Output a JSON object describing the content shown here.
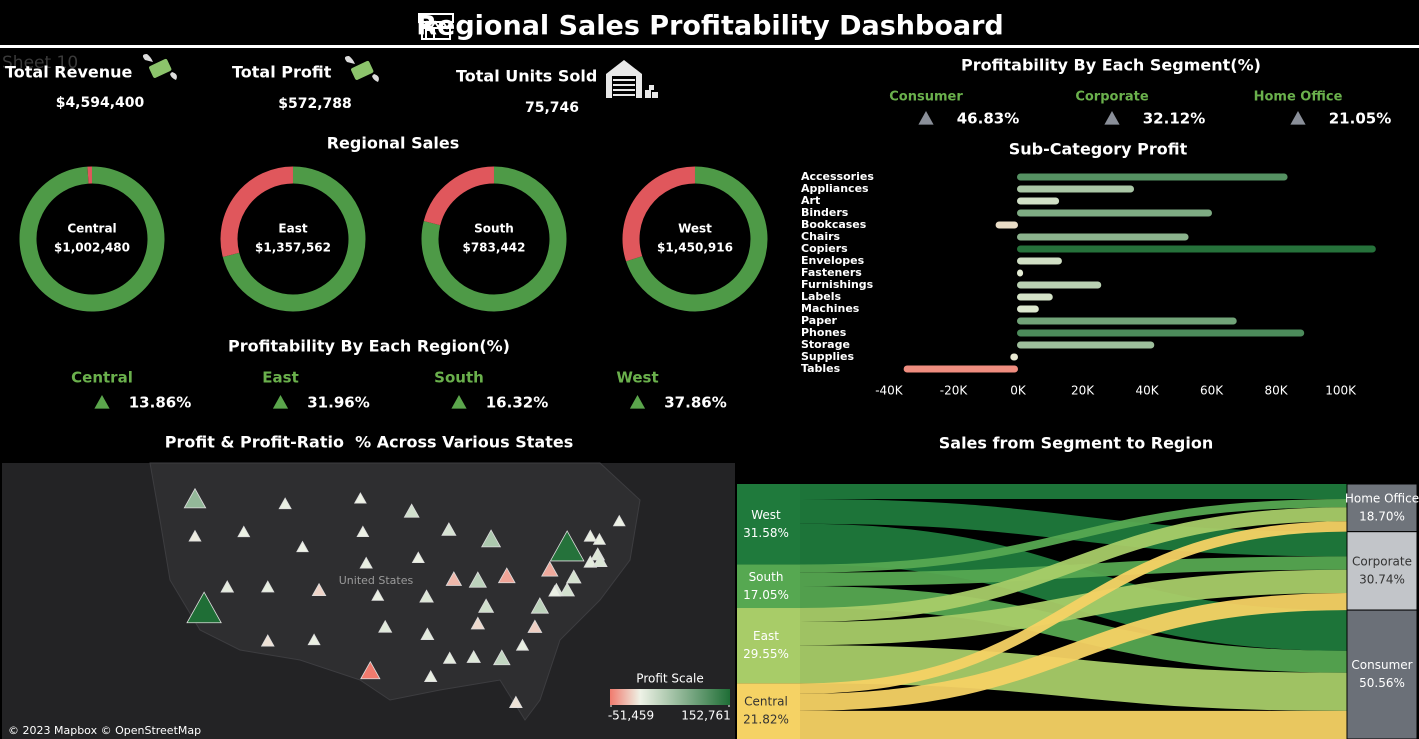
{
  "title": "Regional Sales Profitability Dashboard",
  "sheet_label": "Sheet 10",
  "kpis": [
    {
      "label": "Total Revenue",
      "value": "$4,594,400"
    },
    {
      "label": "Total Profit",
      "value": "$572,788"
    },
    {
      "label": "Total Units Sold",
      "value": "75,746"
    }
  ],
  "chart_data": [
    {
      "type": "donut",
      "title": "Regional Sales",
      "categories": [
        "Central",
        "East",
        "South",
        "West"
      ],
      "values": [
        1002480,
        1357562,
        783442,
        1450916
      ],
      "value_labels": [
        "$1,002,480",
        "$1,357,562",
        "$783,442",
        "$1,450,916"
      ],
      "shares": [
        [
          99,
          1
        ],
        [
          71,
          29
        ],
        [
          79,
          21
        ],
        [
          70,
          30
        ]
      ],
      "colors": [
        "#4e9a47",
        "#e0575c"
      ]
    },
    {
      "type": "indicator",
      "title": "Profitability By Each Region(%)",
      "categories": [
        "Central",
        "East",
        "South",
        "West"
      ],
      "values": [
        13.86,
        31.96,
        16.32,
        37.86
      ],
      "value_labels": [
        "13.86%",
        "31.96%",
        "16.32%",
        "37.86%"
      ],
      "color": "#5ba64c"
    },
    {
      "type": "indicator",
      "title": "Profitability By Each Segment(%)",
      "categories": [
        "Consumer",
        "Corporate",
        "Home Office"
      ],
      "values": [
        46.83,
        32.12,
        21.05
      ],
      "value_labels": [
        "46.83%",
        "32.12%",
        "21.05%"
      ],
      "color": "#8a8f99"
    },
    {
      "type": "hbar",
      "title": "Sub-Category Profit",
      "categories": [
        "Accessories",
        "Appliances",
        "Art",
        "Binders",
        "Bookcases",
        "Chairs",
        "Copiers",
        "Envelopes",
        "Fasteners",
        "Furnishings",
        "Labels",
        "Machines",
        "Paper",
        "Phones",
        "Storage",
        "Supplies",
        "Tables"
      ],
      "values": [
        83874,
        36276,
        13055,
        60443,
        -6945,
        53180,
        111236,
        13928,
        1899,
        26118,
        11093,
        6771,
        68107,
        89031,
        42558,
        -2378,
        -35450
      ],
      "xlim": [
        -42000,
        115000
      ],
      "xticks": [
        {
          "value": -40000,
          "label": "-40K"
        },
        {
          "value": -20000,
          "label": "-20K"
        },
        {
          "value": 0,
          "label": "0K"
        },
        {
          "value": 20000,
          "label": "20K"
        },
        {
          "value": 40000,
          "label": "40K"
        },
        {
          "value": 60000,
          "label": "60K"
        },
        {
          "value": 80000,
          "label": "80K"
        },
        {
          "value": 100000,
          "label": "100K"
        }
      ],
      "colors": [
        "#f07b6e",
        "#e8efd8",
        "#1f6e36"
      ]
    },
    {
      "type": "map",
      "title": "Profit & Profit-Ratio  % Across Various States",
      "annotation": "United States",
      "attribution": "© 2023 Mapbox © OpenStreetMap",
      "legend_title": "Profit Scale",
      "colorlim": [
        {
          "value": -51459,
          "label": "-51,459"
        },
        {
          "value": 152761,
          "label": "152,761"
        }
      ],
      "colors": [
        "#f07b6e",
        "#eef2e6",
        "#1f6e36"
      ],
      "lon": [
        -120.5,
        -120.5,
        -114.6,
        -109.6,
        -107.5,
        -100.5,
        -100.2,
        -94.3,
        -89.8,
        -84.7,
        -75.5,
        -69.2,
        -71.6,
        -72.7,
        -71.8,
        -72.7,
        -71.5,
        -74.7,
        -77.6,
        -75.5,
        -76.8,
        -78.8,
        -82.8,
        -86.3,
        -89.2,
        -93.5,
        -99.8,
        -98.4,
        -116.6,
        -111.7,
        -105.5,
        -119.4,
        -111.7,
        -106.1,
        -97.5,
        -92.5,
        -85.3,
        -92.4,
        -86.3,
        -79.4,
        -80.9,
        -83.4,
        -86.8,
        -89.7,
        -92.0,
        -99.3,
        -81.7,
        -77.0
      ],
      "lat": [
        47.4,
        44.0,
        44.4,
        47.0,
        43.0,
        47.5,
        44.4,
        46.3,
        44.6,
        43.7,
        42.9,
        45.4,
        43.7,
        44.0,
        42.3,
        41.6,
        41.7,
        40.2,
        40.9,
        39.0,
        39.0,
        37.5,
        40.3,
        39.9,
        40.0,
        42.0,
        41.5,
        38.5,
        39.3,
        39.3,
        39.0,
        37.2,
        34.3,
        34.4,
        35.6,
        38.4,
        37.5,
        34.9,
        35.9,
        35.6,
        33.9,
        32.7,
        32.8,
        32.7,
        31.0,
        31.5,
        28.6,
        38.9
      ],
      "values": [
        66805,
        -2380,
        1654,
        3666,
        200,
        460,
        790,
        21646,
        16804,
        48926,
        148077,
        908,
        3414,
        4490,
        13572,
        7022,
        14572,
        19546,
        -31120,
        19954,
        14062,
        37196,
        -33942,
        36766,
        -25216,
        2368,
        4074,
        1672,
        6634,
        5094,
        -13056,
        152761,
        -6856,
        2314,
        9708,
        12872,
        22400,
        8018,
        -10684,
        -14982,
        3538,
        32500,
        11574,
        6344,
        4392,
        -51459,
        -6798,
        2118
      ]
    },
    {
      "type": "sankey",
      "title": "Sales from Segment to Region",
      "categories": [
        "West",
        "South",
        "East",
        "Central"
      ],
      "values": [
        31.58,
        17.05,
        29.55,
        21.82
      ],
      "value_labels": [
        "31.58%",
        "17.05%",
        "29.55%",
        "21.82%"
      ],
      "colors": [
        "#1f7a3c",
        "#56a851",
        "#a8cc68",
        "#f5d264"
      ],
      "targets": {
        "categories": [
          "Home Office",
          "Corporate",
          "Consumer"
        ],
        "values": [
          18.7,
          30.74,
          50.56
        ],
        "value_labels": [
          "18.70%",
          "30.74%",
          "50.56%"
        ],
        "colors": [
          "#6f747b",
          "#c2c5c9",
          "#6b7078"
        ]
      },
      "flows": [
        [
          5.9,
          9.7,
          15.98
        ],
        [
          3.2,
          5.24,
          8.61
        ],
        [
          5.5,
          9.1,
          14.95
        ],
        [
          4.1,
          6.7,
          11.02
        ]
      ]
    }
  ]
}
